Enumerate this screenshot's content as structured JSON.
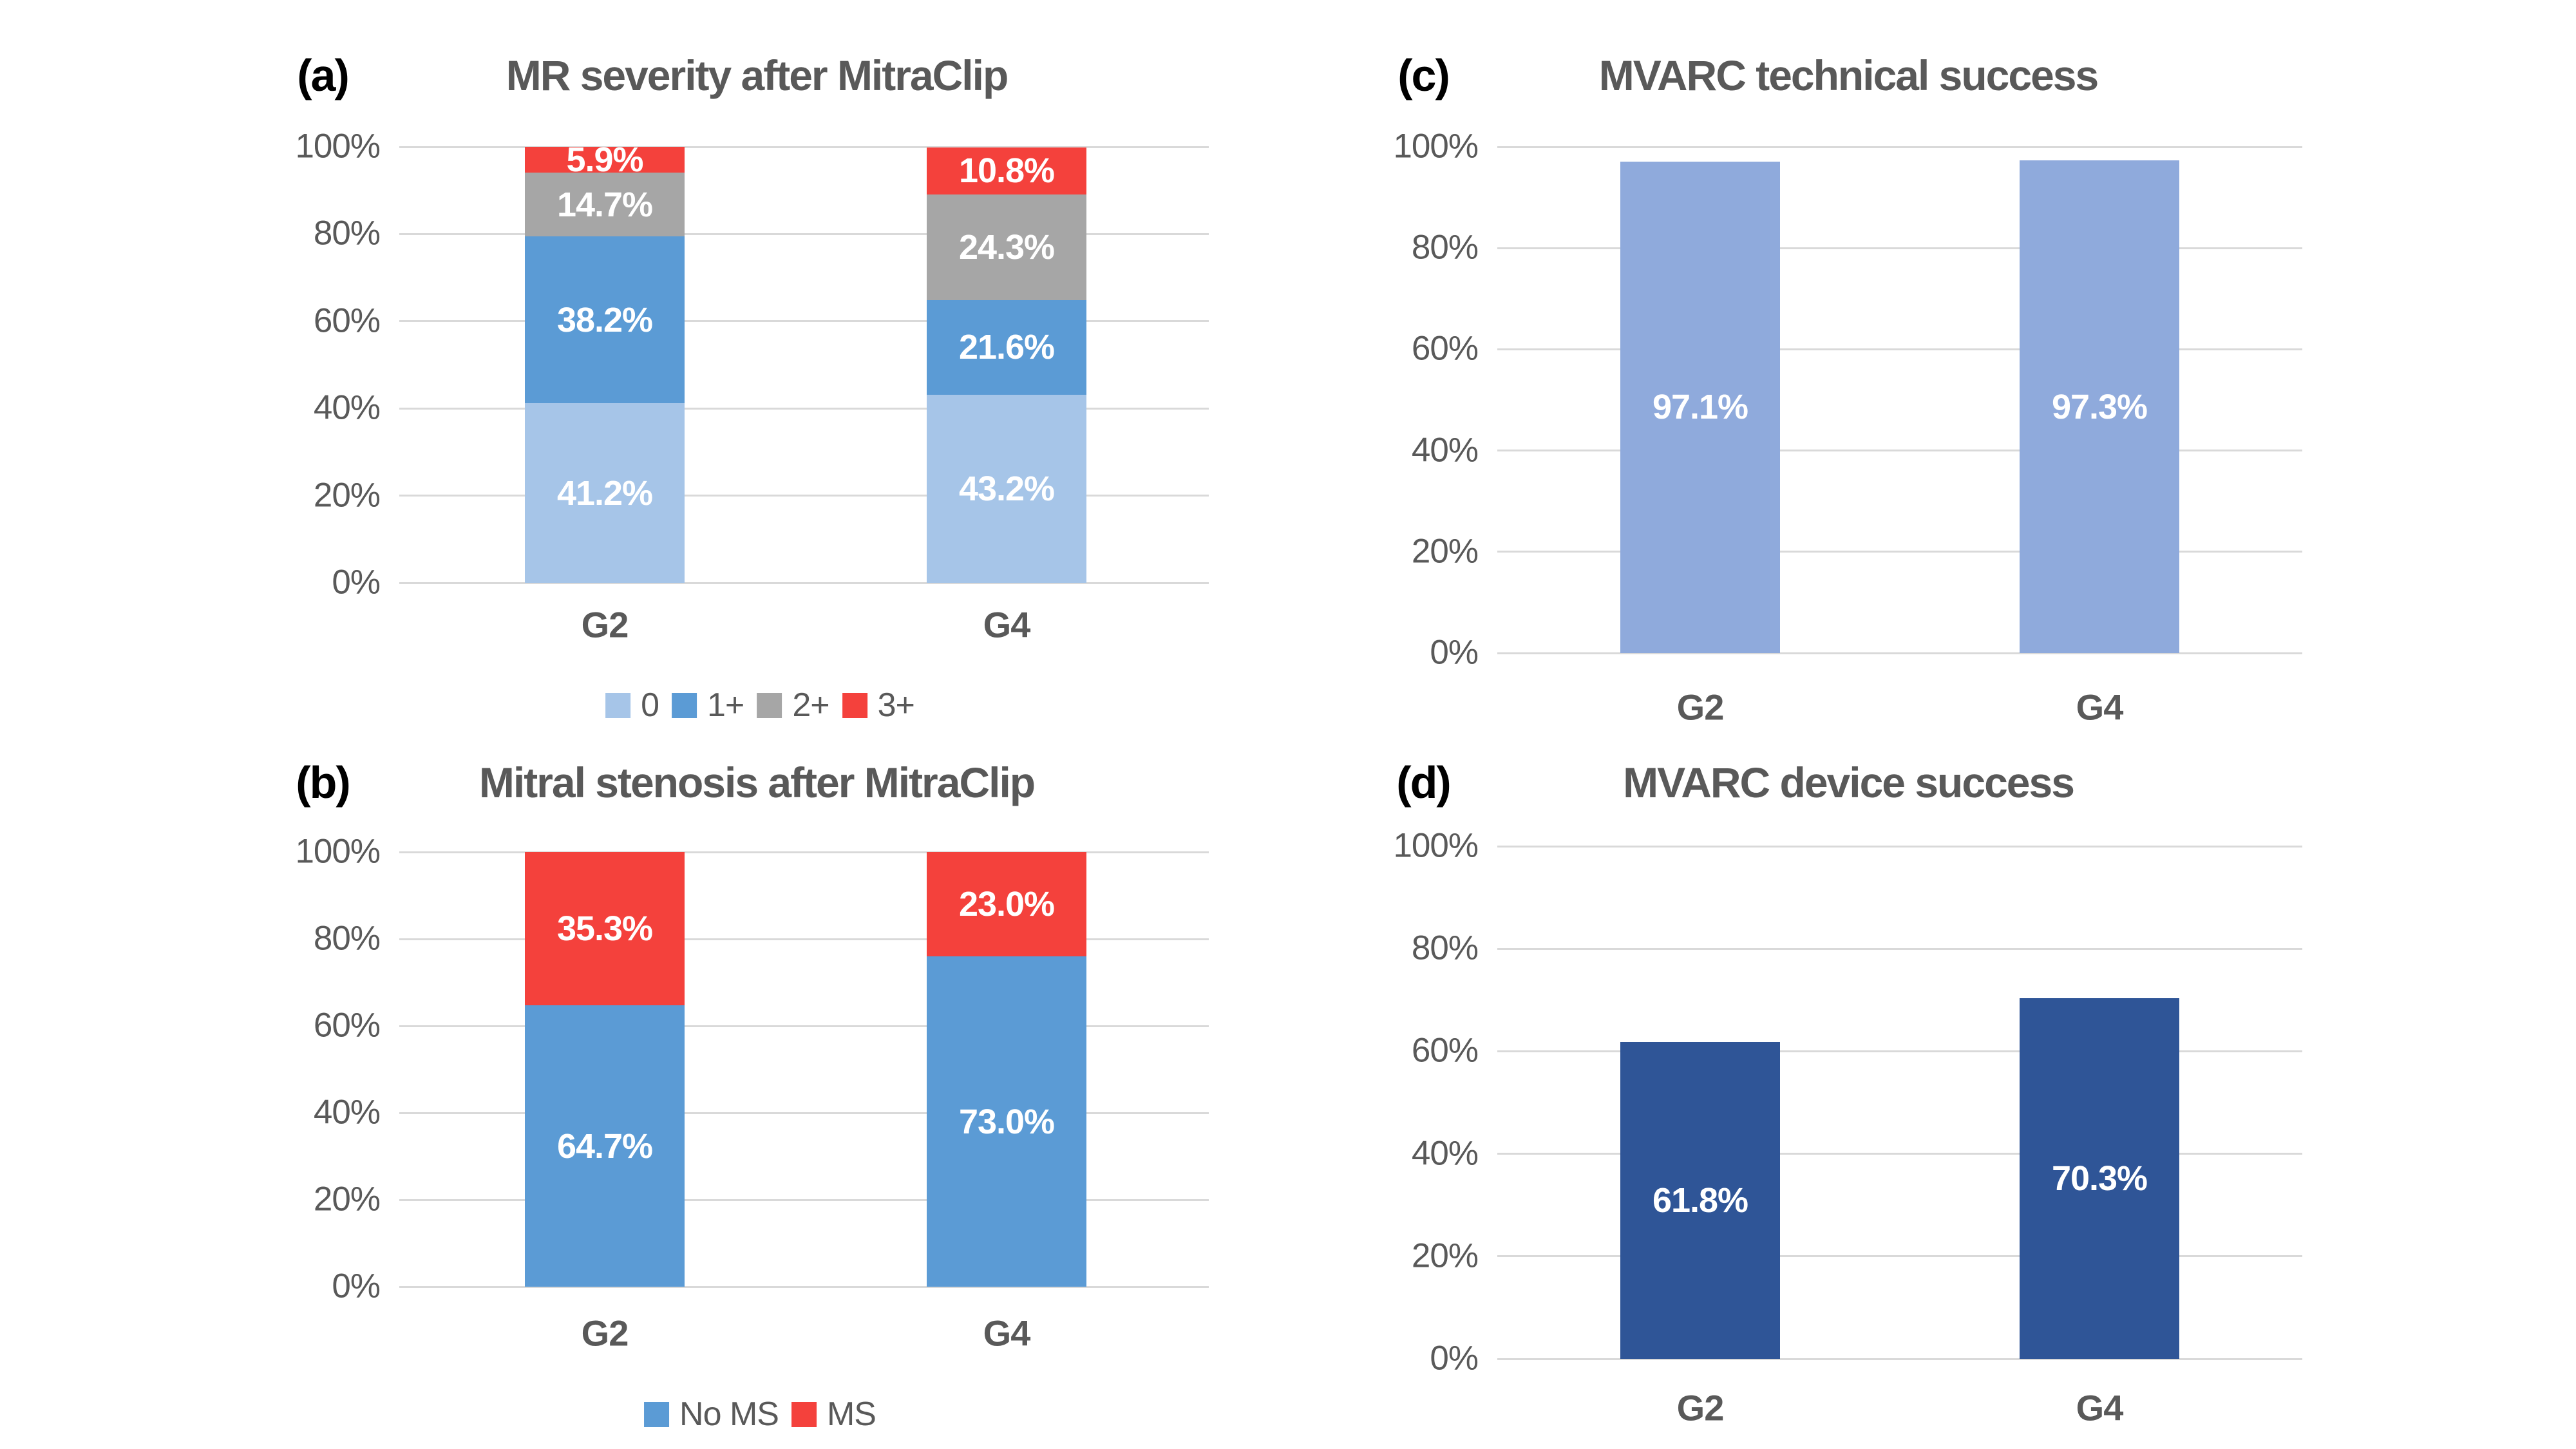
{
  "figure": {
    "background": "#FFFFFF",
    "text_color": "#595959",
    "grid_color": "#D9D9D9",
    "letter_color": "#000000",
    "value_label_color": "#FFFFFF"
  },
  "chart_data": [
    {
      "panel_letter": "(a)",
      "title": "MR severity after MitraClip",
      "type": "stacked-bar",
      "categories": [
        "G2",
        "G4"
      ],
      "y_ticks": [
        "0%",
        "20%",
        "40%",
        "60%",
        "80%",
        "100%"
      ],
      "ylim": [
        0,
        100
      ],
      "grid": true,
      "show_legend": true,
      "legend_position": "bottom",
      "series": [
        {
          "name": "0",
          "color": "#A6C5E8",
          "values": [
            41.2,
            43.2
          ],
          "labels": [
            "41.2%",
            "43.2%"
          ]
        },
        {
          "name": "1+",
          "color": "#5B9BD5",
          "values": [
            38.2,
            21.6
          ],
          "labels": [
            "38.2%",
            "21.6%"
          ]
        },
        {
          "name": "2+",
          "color": "#A6A6A6",
          "values": [
            14.7,
            24.3
          ],
          "labels": [
            "14.7%",
            "24.3%"
          ]
        },
        {
          "name": "3+",
          "color": "#F4413C",
          "values": [
            5.9,
            10.8
          ],
          "labels": [
            "5.9%",
            "10.8%"
          ]
        }
      ]
    },
    {
      "panel_letter": "(b)",
      "title": "Mitral stenosis after MitraClip",
      "type": "stacked-bar",
      "categories": [
        "G2",
        "G4"
      ],
      "y_ticks": [
        "0%",
        "20%",
        "40%",
        "60%",
        "80%",
        "100%"
      ],
      "ylim": [
        0,
        100
      ],
      "grid": true,
      "show_legend": true,
      "legend_position": "bottom",
      "series": [
        {
          "name": "No MS",
          "color": "#5B9BD5",
          "values": [
            64.7,
            73.0
          ],
          "labels": [
            "64.7%",
            "73.0%"
          ],
          "draw_values": [
            64.7,
            76.0
          ]
        },
        {
          "name": "MS",
          "color": "#F4413C",
          "values": [
            35.3,
            23.0
          ],
          "labels": [
            "35.3%",
            "23.0%"
          ],
          "draw_values": [
            35.3,
            24.0
          ]
        }
      ]
    },
    {
      "panel_letter": "(c)",
      "title": "MVARC technical success",
      "type": "bar",
      "categories": [
        "G2",
        "G4"
      ],
      "y_ticks": [
        "0%",
        "20%",
        "40%",
        "60%",
        "80%",
        "100%"
      ],
      "ylim": [
        0,
        100
      ],
      "grid": true,
      "show_legend": false,
      "series": [
        {
          "name": "",
          "color": "#8FAADC",
          "values": [
            97.1,
            97.3
          ],
          "labels": [
            "97.1%",
            "97.3%"
          ]
        }
      ]
    },
    {
      "panel_letter": "(d)",
      "title": "MVARC device success",
      "type": "bar",
      "categories": [
        "G2",
        "G4"
      ],
      "y_ticks": [
        "0%",
        "20%",
        "40%",
        "60%",
        "80%",
        "100%"
      ],
      "ylim": [
        0,
        100
      ],
      "grid": true,
      "show_legend": false,
      "series": [
        {
          "name": "",
          "color": "#2F5597",
          "values": [
            61.8,
            70.3
          ],
          "labels": [
            "61.8%",
            "70.3%"
          ]
        }
      ]
    }
  ]
}
